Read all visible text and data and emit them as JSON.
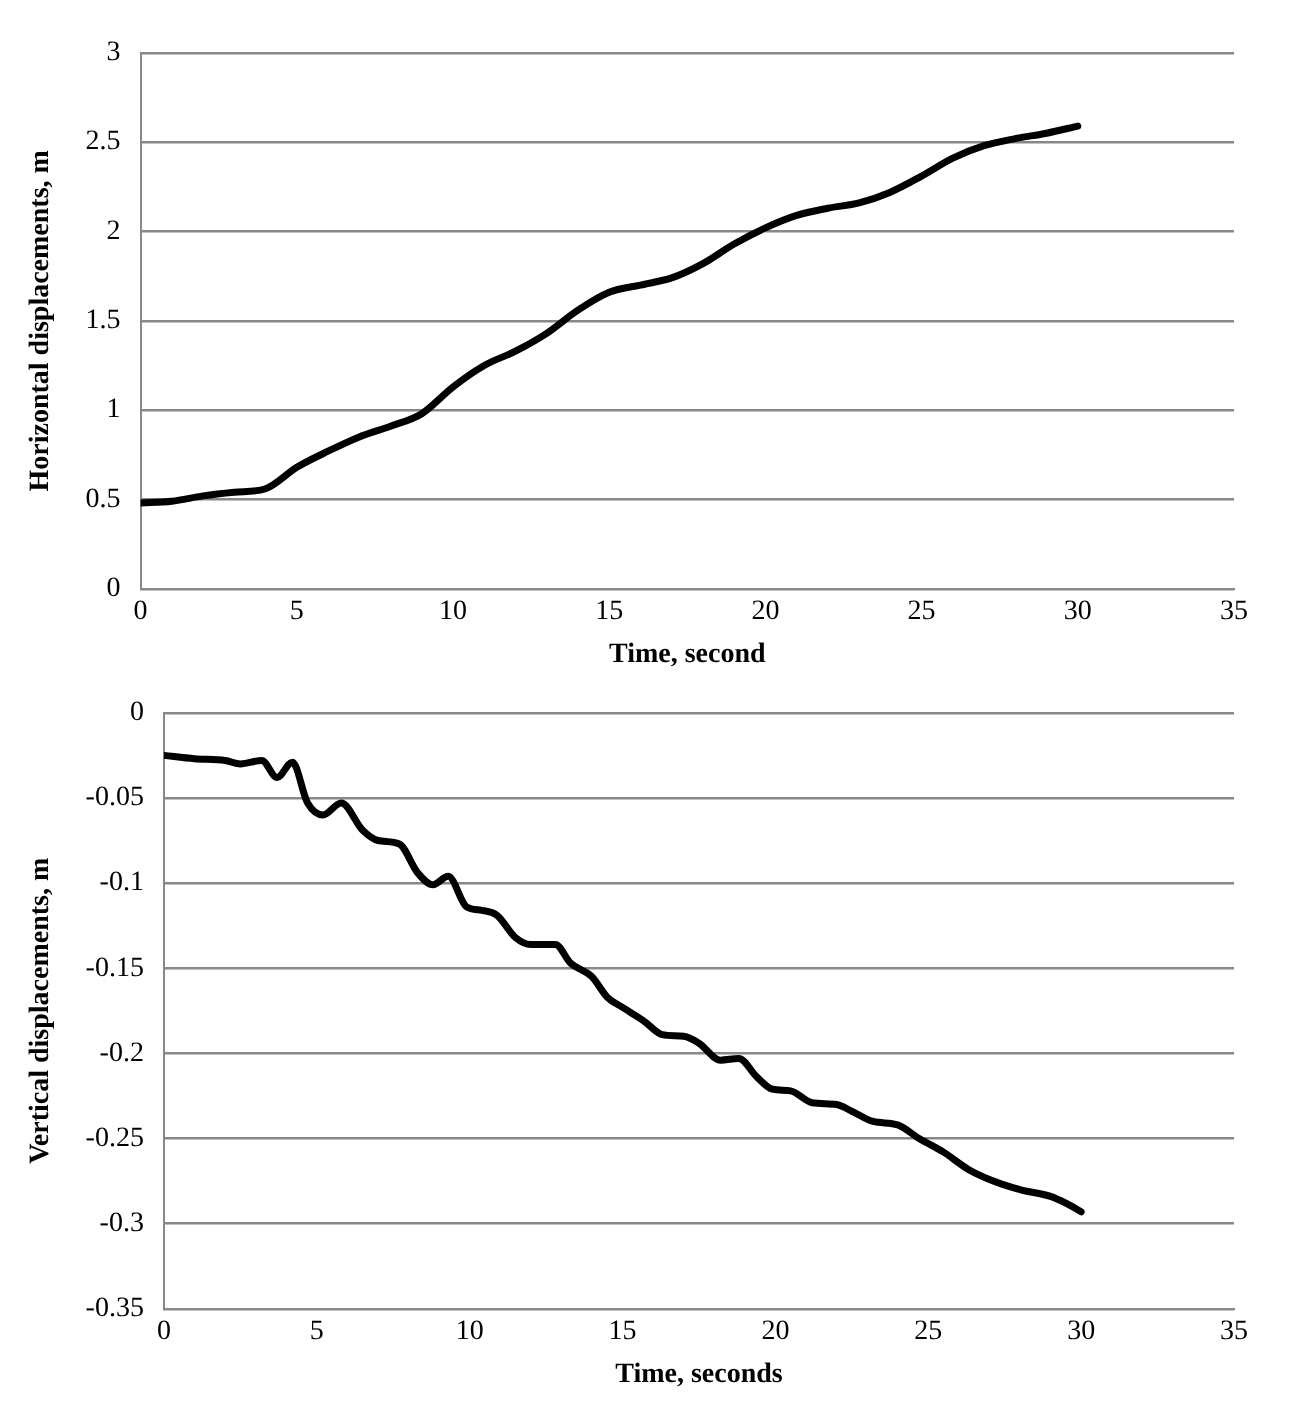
{
  "chart_data": [
    {
      "type": "line",
      "xlabel": "Time, second",
      "ylabel": "Horizontal displacements, m",
      "xlim": [
        0,
        35
      ],
      "xticks": [
        0,
        5,
        10,
        15,
        20,
        25,
        30,
        35
      ],
      "ylim": [
        0,
        3
      ],
      "yticks": [
        0,
        0.5,
        1,
        1.5,
        2,
        2.5,
        3
      ],
      "grid": "y",
      "legend": false,
      "marker": "none",
      "line_style": "solid",
      "series": [
        {
          "color": "#000000",
          "x": [
            0,
            1,
            2,
            3,
            4,
            5,
            6,
            7,
            8,
            9,
            10,
            11,
            12,
            13,
            14,
            15,
            16,
            17,
            18,
            19,
            20,
            21,
            22,
            23,
            24,
            25,
            26,
            27,
            28,
            29,
            30
          ],
          "values": [
            0.48,
            0.49,
            0.52,
            0.54,
            0.56,
            0.68,
            0.77,
            0.85,
            0.91,
            0.98,
            1.13,
            1.25,
            1.33,
            1.43,
            1.56,
            1.66,
            1.7,
            1.74,
            1.82,
            1.93,
            2.02,
            2.09,
            2.13,
            2.16,
            2.22,
            2.31,
            2.41,
            2.48,
            2.52,
            2.55,
            2.59
          ]
        }
      ]
    },
    {
      "type": "line",
      "xlabel": "Time, seconds",
      "ylabel": "Vertical displacements, m",
      "xlim": [
        0,
        35
      ],
      "xticks": [
        0,
        5,
        10,
        15,
        20,
        25,
        30,
        35
      ],
      "ylim": [
        -0.35,
        0
      ],
      "yticks": [
        -0.35,
        -0.3,
        -0.25,
        -0.2,
        -0.15,
        -0.1,
        -0.05,
        0
      ],
      "grid": "y",
      "legend": false,
      "marker": "none",
      "line_style": "solid",
      "series": [
        {
          "color": "#000000",
          "x": [
            0,
            1,
            2,
            2.5,
            3.2,
            3.7,
            4.2,
            4.7,
            5.2,
            5.8,
            6.5,
            7,
            7.7,
            8.3,
            8.8,
            9.3,
            9.9,
            10.4,
            10.9,
            11.5,
            12,
            12.8,
            13.3,
            14,
            14.5,
            15,
            15.7,
            16.3,
            17,
            17.5,
            18.2,
            18.8,
            19.4,
            19.9,
            20.5,
            21.2,
            22,
            22.5,
            23.2,
            24,
            24.7,
            25.5,
            26.3,
            27,
            28,
            29,
            29.5,
            30
          ],
          "values": [
            -0.025,
            -0.027,
            -0.028,
            -0.03,
            -0.028,
            -0.038,
            -0.029,
            -0.053,
            -0.06,
            -0.053,
            -0.069,
            -0.075,
            -0.077,
            -0.094,
            -0.101,
            -0.096,
            -0.114,
            -0.116,
            -0.119,
            -0.132,
            -0.136,
            -0.136,
            -0.147,
            -0.155,
            -0.167,
            -0.173,
            -0.181,
            -0.189,
            -0.19,
            -0.194,
            -0.204,
            -0.203,
            -0.214,
            -0.221,
            -0.222,
            -0.229,
            -0.23,
            -0.234,
            -0.24,
            -0.242,
            -0.25,
            -0.258,
            -0.268,
            -0.274,
            -0.28,
            -0.284,
            -0.288,
            -0.293
          ]
        }
      ]
    }
  ]
}
